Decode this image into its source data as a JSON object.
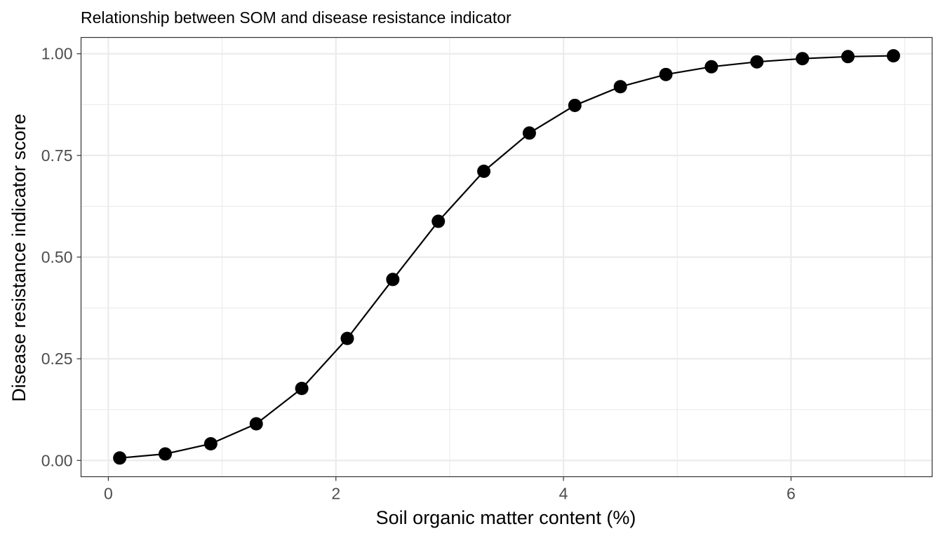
{
  "chart_data": {
    "type": "line",
    "title": "Relationship between SOM and disease resistance indicator",
    "xlabel": "Soil organic matter content (%)",
    "ylabel": "Disease resistance indicator score",
    "xlim": [
      -0.24,
      7.24
    ],
    "ylim": [
      -0.04,
      1.04
    ],
    "x_ticks": [
      0,
      2,
      4,
      6
    ],
    "x_tick_labels": [
      "0",
      "2",
      "4",
      "6"
    ],
    "y_ticks": [
      0,
      0.25,
      0.5,
      0.75,
      1.0
    ],
    "y_tick_labels": [
      "0.00",
      "0.25",
      "0.50",
      "0.75",
      "1.00"
    ],
    "x_minor_ticks": [
      1,
      3,
      5,
      7
    ],
    "y_minor_ticks": [
      0.125,
      0.375,
      0.625,
      0.875
    ],
    "grid": true,
    "legend": "none",
    "colors": {
      "line": "#000000",
      "points": "#000000",
      "grid": "#ebebeb",
      "panel_border": "#333333",
      "tick_label": "#4d4d4d"
    },
    "series": [
      {
        "x": [
          0.1,
          0.5,
          0.9,
          1.3,
          1.7,
          2.1,
          2.5,
          2.9,
          3.3,
          3.7,
          4.1,
          4.5,
          4.9,
          5.3,
          5.7,
          6.1,
          6.5,
          6.9
        ],
        "y": [
          0.006,
          0.016,
          0.041,
          0.09,
          0.177,
          0.3,
          0.445,
          0.588,
          0.711,
          0.805,
          0.873,
          0.919,
          0.949,
          0.968,
          0.98,
          0.988,
          0.993,
          0.995
        ]
      }
    ]
  }
}
